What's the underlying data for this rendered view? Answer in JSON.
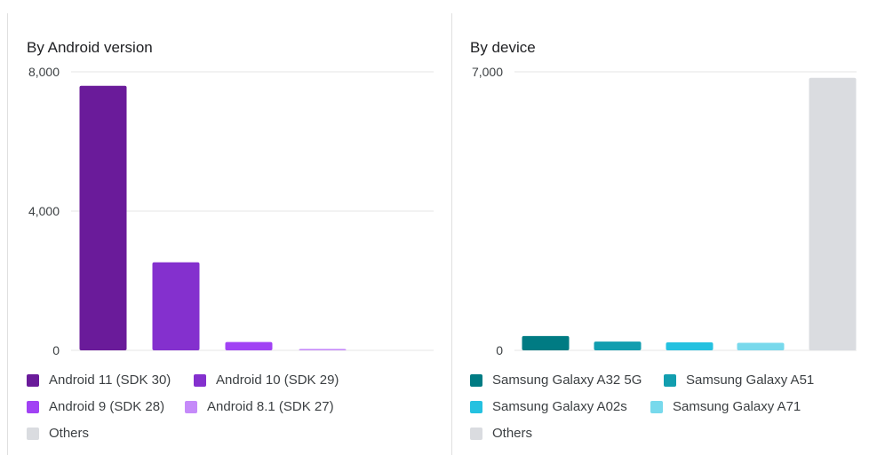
{
  "chart_data": [
    {
      "type": "bar",
      "title": "By Android version",
      "xlabel": "",
      "ylabel": "",
      "ylim": [
        0,
        8000
      ],
      "yticks": [
        "0",
        "4,000",
        "8,000"
      ],
      "yticks_values": [
        0,
        4000,
        8000
      ],
      "grid": true,
      "legend_position": "bottom",
      "categories": [
        "Android 11 (SDK 30)",
        "Android 10 (SDK 29)",
        "Android 9 (SDK 28)",
        "Android 8.1 (SDK 27)",
        "Others"
      ],
      "values": [
        7600,
        2530,
        240,
        40,
        0
      ],
      "colors": [
        "#6a1b9a",
        "#8430ce",
        "#a142f4",
        "#c58af9",
        "#dadce0"
      ]
    },
    {
      "type": "bar",
      "title": "By device",
      "xlabel": "",
      "ylabel": "",
      "ylim": [
        0,
        7000
      ],
      "yticks": [
        "0",
        "7,000"
      ],
      "yticks_values": [
        0,
        7000
      ],
      "grid": true,
      "legend_position": "bottom",
      "categories": [
        "Samsung Galaxy A32 5G",
        "Samsung Galaxy A51",
        "Samsung Galaxy A02s",
        "Samsung Galaxy A71",
        "Others"
      ],
      "values": [
        360,
        220,
        200,
        190,
        6850
      ],
      "colors": [
        "#007b83",
        "#129eaf",
        "#24c1e0",
        "#78d9ec",
        "#dadce0"
      ]
    }
  ]
}
